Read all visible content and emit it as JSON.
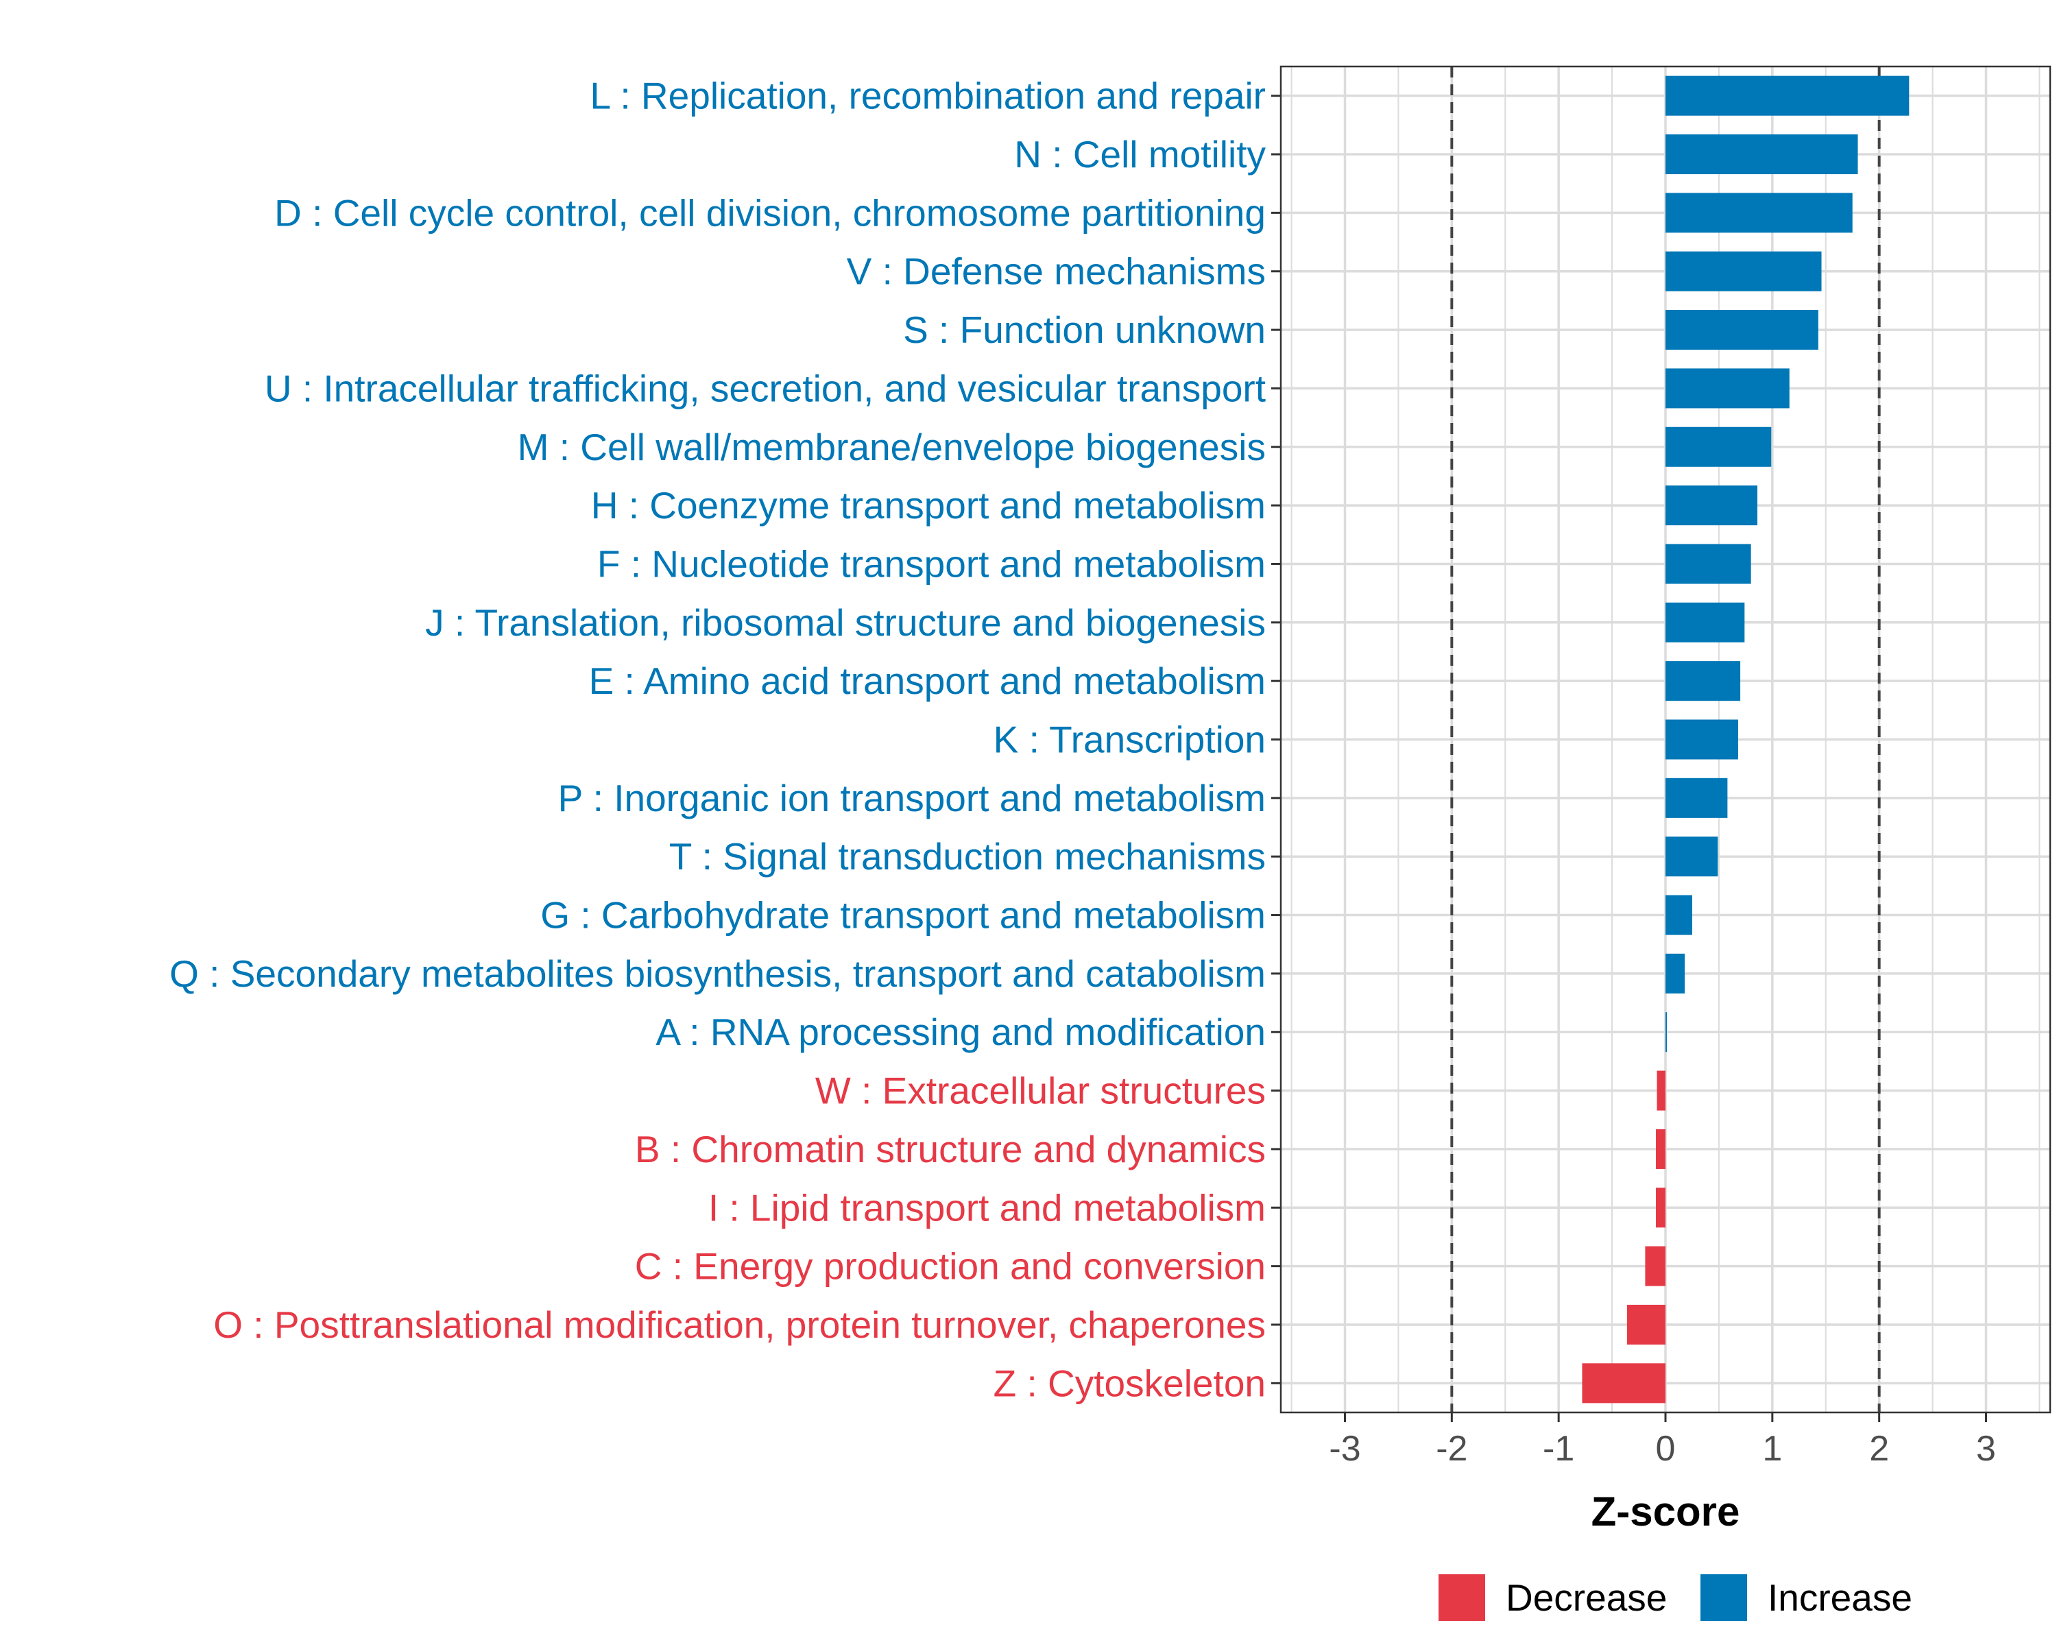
{
  "chart_data": {
    "type": "bar",
    "orientation": "horizontal",
    "xlabel": "Z-score",
    "xlim": [
      -3.6,
      3.6
    ],
    "xticks": [
      "-3",
      "-2",
      "-1",
      "0",
      "1",
      "2",
      "3"
    ],
    "reference_lines": [
      -2,
      2
    ],
    "grid": true,
    "legend_position": "bottom",
    "legend": [
      {
        "name": "Decrease",
        "color": "#E63946"
      },
      {
        "name": "Increase",
        "color": "#0077B6"
      }
    ],
    "colors": {
      "increase": "#0077B6",
      "decrease": "#E63946"
    },
    "categories": [
      "L : Replication, recombination and repair",
      "N : Cell motility",
      "D : Cell cycle control, cell division, chromosome partitioning",
      "V : Defense mechanisms",
      "S : Function unknown",
      "U : Intracellular trafficking, secretion, and vesicular transport",
      "M : Cell wall/membrane/envelope biogenesis",
      "H : Coenzyme transport and metabolism",
      "F : Nucleotide transport and metabolism",
      "J : Translation, ribosomal structure and biogenesis",
      "E : Amino acid transport and metabolism",
      "K : Transcription",
      "P : Inorganic ion transport and metabolism",
      "T : Signal transduction mechanisms",
      "G : Carbohydrate transport and metabolism",
      "Q : Secondary metabolites biosynthesis, transport and catabolism",
      "A : RNA processing and modification",
      "W : Extracellular structures",
      "B : Chromatin structure and dynamics",
      "I : Lipid transport and metabolism",
      "C : Energy production and conversion",
      "O : Posttranslational modification, protein turnover, chaperones",
      "Z : Cytoskeleton"
    ],
    "values": [
      2.28,
      1.8,
      1.75,
      1.46,
      1.43,
      1.16,
      0.99,
      0.86,
      0.8,
      0.74,
      0.7,
      0.68,
      0.58,
      0.49,
      0.25,
      0.18,
      0.0,
      -0.08,
      -0.09,
      -0.09,
      -0.19,
      -0.36,
      -0.78
    ],
    "groups": [
      "Increase",
      "Increase",
      "Increase",
      "Increase",
      "Increase",
      "Increase",
      "Increase",
      "Increase",
      "Increase",
      "Increase",
      "Increase",
      "Increase",
      "Increase",
      "Increase",
      "Increase",
      "Increase",
      "Increase",
      "Decrease",
      "Decrease",
      "Decrease",
      "Decrease",
      "Decrease",
      "Decrease"
    ]
  }
}
